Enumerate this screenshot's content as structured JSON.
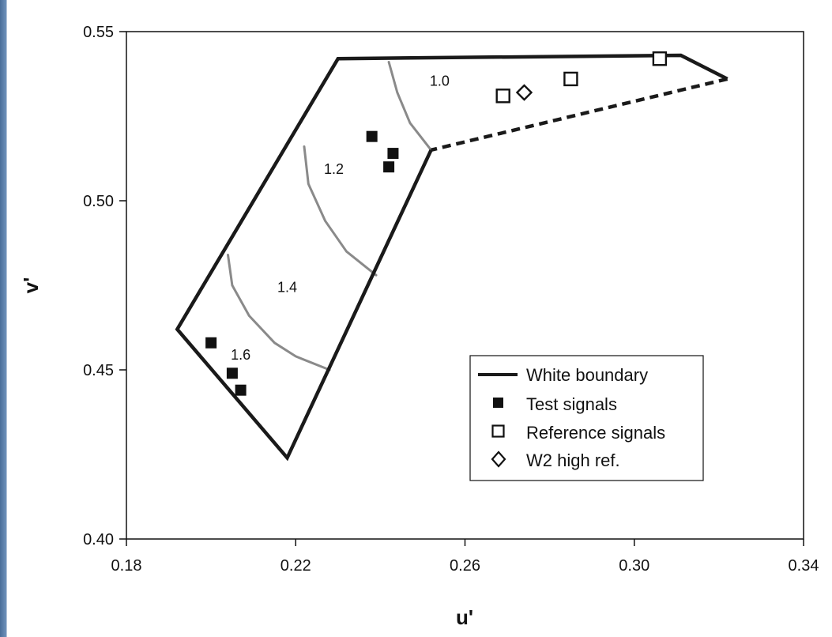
{
  "chart_data": {
    "type": "scatter",
    "xlabel": "u'",
    "ylabel": "v'",
    "xlim": [
      0.18,
      0.34
    ],
    "ylim": [
      0.4,
      0.55
    ],
    "x_ticks": [
      0.18,
      0.22,
      0.26,
      0.3,
      0.34
    ],
    "y_ticks": [
      0.4,
      0.45,
      0.5,
      0.55
    ],
    "x_tick_labels": [
      "0.18",
      "0.22",
      "0.26",
      "0.30",
      "0.34"
    ],
    "y_tick_labels": [
      "0.40",
      "0.45",
      "0.50",
      "0.55"
    ],
    "white_boundary": {
      "solid": [
        [
          0.252,
          0.515
        ],
        [
          0.218,
          0.424
        ],
        [
          0.192,
          0.462
        ],
        [
          0.23,
          0.542
        ],
        [
          0.311,
          0.543
        ],
        [
          0.322,
          0.536
        ]
      ],
      "dashed": [
        [
          0.322,
          0.536
        ],
        [
          0.252,
          0.515
        ]
      ]
    },
    "iso_lines": [
      {
        "label": "1.0",
        "label_pos": [
          0.254,
          0.534
        ],
        "points": [
          [
            0.242,
            0.541
          ],
          [
            0.244,
            0.532
          ],
          [
            0.247,
            0.523
          ],
          [
            0.252,
            0.515
          ]
        ]
      },
      {
        "label": "1.2",
        "label_pos": [
          0.229,
          0.508
        ],
        "points": [
          [
            0.222,
            0.516
          ],
          [
            0.223,
            0.505
          ],
          [
            0.227,
            0.494
          ],
          [
            0.232,
            0.485
          ],
          [
            0.239,
            0.478
          ]
        ]
      },
      {
        "label": "1.4",
        "label_pos": [
          0.218,
          0.473
        ],
        "points": [
          [
            0.204,
            0.484
          ],
          [
            0.205,
            0.475
          ],
          [
            0.209,
            0.466
          ],
          [
            0.215,
            0.458
          ],
          [
            0.22,
            0.454
          ],
          [
            0.228,
            0.45
          ]
        ]
      },
      {
        "label": "1.6",
        "label_pos": [
          0.207,
          0.453
        ],
        "points": []
      }
    ],
    "series": [
      {
        "name": "Test signals",
        "marker": "filled-square",
        "points": [
          [
            0.238,
            0.519
          ],
          [
            0.243,
            0.514
          ],
          [
            0.242,
            0.51
          ],
          [
            0.2,
            0.458
          ],
          [
            0.205,
            0.449
          ],
          [
            0.207,
            0.444
          ]
        ]
      },
      {
        "name": "Reference signals",
        "marker": "open-square",
        "points": [
          [
            0.269,
            0.531
          ],
          [
            0.285,
            0.536
          ],
          [
            0.306,
            0.542
          ]
        ]
      },
      {
        "name": "W2 high ref.",
        "marker": "open-diamond",
        "points": [
          [
            0.274,
            0.532
          ]
        ]
      }
    ],
    "legend": {
      "placement": "bottom-right",
      "entries": [
        {
          "label": "White boundary",
          "marker": "line"
        },
        {
          "label": "Test signals",
          "marker": "filled-square"
        },
        {
          "label": "Reference signals",
          "marker": "open-square"
        },
        {
          "label": "W2 high ref.",
          "marker": "open-diamond"
        }
      ]
    },
    "colors": {
      "boundary": "#1a1a1a",
      "iso": "#8a8a8a",
      "marker": "#111111"
    }
  }
}
